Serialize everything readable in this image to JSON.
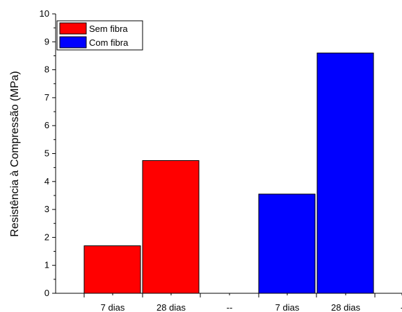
{
  "chart_data": {
    "type": "bar",
    "ylabel": "Resistência à Compressão (MPa)",
    "xlabel": "",
    "ylim": [
      0,
      10
    ],
    "y_ticks": [
      "0",
      "1",
      "2",
      "3",
      "4",
      "5",
      "6",
      "7",
      "8",
      "9",
      "10"
    ],
    "x_tick_labels": [
      "7 dias",
      "28 dias",
      "--",
      "7 dias",
      "28 dias",
      "-"
    ],
    "bars": [
      {
        "category": "7 dias",
        "series": "Sem fibra",
        "value": 1.7
      },
      {
        "category": "28 dias",
        "series": "Sem fibra",
        "value": 4.75
      },
      {
        "category": "7 dias",
        "series": "Com fibra",
        "value": 3.55
      },
      {
        "category": "28 dias",
        "series": "Com fibra",
        "value": 8.6
      }
    ],
    "series": [
      {
        "name": "Sem fibra",
        "color": "#ff0000"
      },
      {
        "name": "Com fibra",
        "color": "#0000ff"
      }
    ],
    "legend_position": "top-left",
    "grid": false
  }
}
